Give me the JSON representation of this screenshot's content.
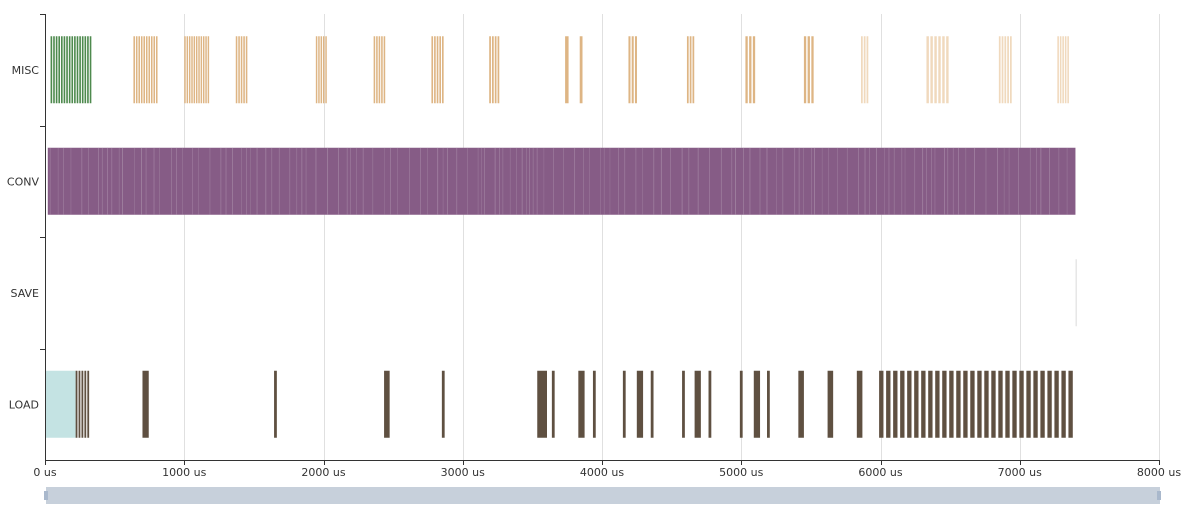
{
  "chart_data": {
    "type": "timeline",
    "x_unit": "us",
    "xlim": [
      0,
      8000
    ],
    "x_ticks": [
      {
        "value": 0,
        "label": "0 us"
      },
      {
        "value": 1000,
        "label": "1000 us"
      },
      {
        "value": 2000,
        "label": "2000 us"
      },
      {
        "value": 3000,
        "label": "3000 us"
      },
      {
        "value": 4000,
        "label": "4000 us"
      },
      {
        "value": 5000,
        "label": "5000 us"
      },
      {
        "value": 6000,
        "label": "6000 us"
      },
      {
        "value": 7000,
        "label": "7000 us"
      },
      {
        "value": 8000,
        "label": "8000 us"
      }
    ],
    "grid": true,
    "rows": [
      {
        "name": "MISC",
        "colors": [
          "#4e8a4e",
          "#deb584",
          "#f0d9bd"
        ],
        "segments": [
          {
            "start": 40,
            "end": 340,
            "color": 0,
            "stripes": 16
          },
          {
            "start": 635,
            "end": 815,
            "color": 1,
            "stripes": 10
          },
          {
            "start": 1000,
            "end": 1185,
            "color": 1,
            "stripes": 11
          },
          {
            "start": 1370,
            "end": 1460,
            "color": 1,
            "stripes": 5
          },
          {
            "start": 1945,
            "end": 2030,
            "color": 1,
            "stripes": 5
          },
          {
            "start": 2360,
            "end": 2450,
            "color": 1,
            "stripes": 5
          },
          {
            "start": 2775,
            "end": 2870,
            "color": 1,
            "stripes": 5
          },
          {
            "start": 3190,
            "end": 3270,
            "color": 1,
            "stripes": 4
          },
          {
            "start": 3735,
            "end": 3760,
            "color": 1,
            "stripes": 1
          },
          {
            "start": 3840,
            "end": 3860,
            "color": 1,
            "stripes": 1
          },
          {
            "start": 4190,
            "end": 4260,
            "color": 1,
            "stripes": 3
          },
          {
            "start": 4610,
            "end": 4670,
            "color": 1,
            "stripes": 3
          },
          {
            "start": 5030,
            "end": 5110,
            "color": 1,
            "stripes": 3
          },
          {
            "start": 5450,
            "end": 5530,
            "color": 1,
            "stripes": 3
          },
          {
            "start": 5860,
            "end": 5920,
            "color": 2,
            "stripes": 3
          },
          {
            "start": 6330,
            "end": 6500,
            "color": 2,
            "stripes": 6
          },
          {
            "start": 6850,
            "end": 6950,
            "color": 2,
            "stripes": 5
          },
          {
            "start": 7270,
            "end": 7360,
            "color": 2,
            "stripes": 5
          }
        ]
      },
      {
        "name": "CONV",
        "colors": [
          "#865c86",
          "#b39ab3"
        ],
        "segments": [
          {
            "start": 20,
            "end": 7400,
            "color": 0,
            "stripes": 0
          }
        ]
      },
      {
        "name": "SAVE",
        "colors": [
          "#e6e6e6"
        ],
        "segments": [
          {
            "start": 7400,
            "end": 7405,
            "color": 0,
            "stripes": 0
          }
        ]
      },
      {
        "name": "LOAD",
        "colors": [
          "#c4e3e3",
          "#5f5041"
        ],
        "segments": [
          {
            "start": 0,
            "end": 220,
            "color": 0,
            "stripes": 0
          },
          {
            "start": 220,
            "end": 325,
            "color": 1,
            "stripes": 5
          },
          {
            "start": 700,
            "end": 745,
            "color": 1,
            "stripes": 1
          },
          {
            "start": 1645,
            "end": 1665,
            "color": 1,
            "stripes": 1
          },
          {
            "start": 2435,
            "end": 2475,
            "color": 1,
            "stripes": 1
          },
          {
            "start": 2850,
            "end": 2870,
            "color": 1,
            "stripes": 1
          },
          {
            "start": 3535,
            "end": 3605,
            "color": 1,
            "stripes": 1
          },
          {
            "start": 3640,
            "end": 3660,
            "color": 1,
            "stripes": 1
          },
          {
            "start": 3830,
            "end": 3875,
            "color": 1,
            "stripes": 1
          },
          {
            "start": 3935,
            "end": 3955,
            "color": 1,
            "stripes": 1
          },
          {
            "start": 4150,
            "end": 4170,
            "color": 1,
            "stripes": 1
          },
          {
            "start": 4250,
            "end": 4295,
            "color": 1,
            "stripes": 1
          },
          {
            "start": 4350,
            "end": 4370,
            "color": 1,
            "stripes": 1
          },
          {
            "start": 4575,
            "end": 4595,
            "color": 1,
            "stripes": 1
          },
          {
            "start": 4665,
            "end": 4710,
            "color": 1,
            "stripes": 1
          },
          {
            "start": 4765,
            "end": 4785,
            "color": 1,
            "stripes": 1
          },
          {
            "start": 4990,
            "end": 5010,
            "color": 1,
            "stripes": 1
          },
          {
            "start": 5090,
            "end": 5135,
            "color": 1,
            "stripes": 1
          },
          {
            "start": 5185,
            "end": 5205,
            "color": 1,
            "stripes": 1
          },
          {
            "start": 5410,
            "end": 5450,
            "color": 1,
            "stripes": 1
          },
          {
            "start": 5620,
            "end": 5660,
            "color": 1,
            "stripes": 1
          },
          {
            "start": 5830,
            "end": 5870,
            "color": 1,
            "stripes": 1
          },
          {
            "start": 5990,
            "end": 7400,
            "color": 1,
            "stripes": 28
          }
        ]
      }
    ],
    "scrollbar": {
      "range": [
        0,
        1
      ]
    }
  }
}
